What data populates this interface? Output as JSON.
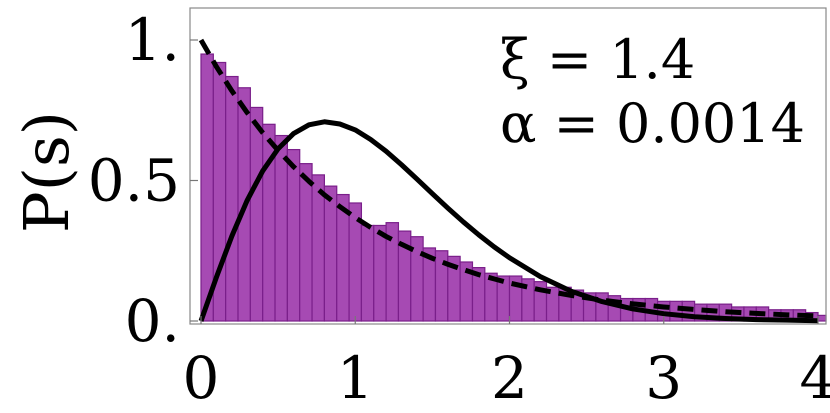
{
  "chart_data": {
    "type": "bar",
    "title": "",
    "xlabel": "",
    "ylabel": "P(s)",
    "xlim": [
      0,
      4.05
    ],
    "ylim": [
      0,
      1.02
    ],
    "xticks": [
      "0",
      "1",
      "2",
      "3",
      "4"
    ],
    "yticks": [
      "0.",
      "0.5",
      "1."
    ],
    "grid": false,
    "bar_color": "#a64ab3",
    "bar_edge_color": "#7a1f8a",
    "annotations": {
      "xi": "ξ = 1.4",
      "alpha": "α = 0.0014"
    },
    "histogram": {
      "bin_width": 0.08,
      "x": [
        0.04,
        0.12,
        0.2,
        0.28,
        0.36,
        0.44,
        0.52,
        0.6,
        0.68,
        0.76,
        0.84,
        0.92,
        1.0,
        1.08,
        1.16,
        1.24,
        1.32,
        1.4,
        1.48,
        1.56,
        1.64,
        1.72,
        1.8,
        1.88,
        1.96,
        2.04,
        2.12,
        2.2,
        2.28,
        2.36,
        2.44,
        2.52,
        2.6,
        2.68,
        2.76,
        2.84,
        2.92,
        3.0,
        3.08,
        3.16,
        3.24,
        3.32,
        3.4,
        3.48,
        3.56,
        3.64,
        3.72,
        3.8,
        3.88,
        3.96,
        4.04
      ],
      "values": [
        0.95,
        0.92,
        0.87,
        0.83,
        0.76,
        0.7,
        0.66,
        0.61,
        0.56,
        0.52,
        0.48,
        0.45,
        0.42,
        0.34,
        0.34,
        0.35,
        0.32,
        0.3,
        0.26,
        0.25,
        0.23,
        0.21,
        0.19,
        0.17,
        0.16,
        0.16,
        0.15,
        0.14,
        0.12,
        0.12,
        0.11,
        0.1,
        0.1,
        0.09,
        0.08,
        0.08,
        0.08,
        0.07,
        0.07,
        0.07,
        0.06,
        0.06,
        0.06,
        0.05,
        0.05,
        0.05,
        0.04,
        0.04,
        0.04,
        0.03,
        0.02
      ]
    },
    "series": [
      {
        "style": "dashed",
        "x": [
          0,
          0.1,
          0.2,
          0.3,
          0.4,
          0.5,
          0.6,
          0.7,
          0.8,
          0.9,
          1.0,
          1.1,
          1.2,
          1.3,
          1.4,
          1.5,
          1.6,
          1.7,
          1.8,
          1.9,
          2.0,
          2.2,
          2.4,
          2.6,
          2.8,
          3.0,
          3.2,
          3.4,
          3.6,
          3.8,
          4.0
        ],
        "values": [
          1.0,
          0.905,
          0.819,
          0.741,
          0.67,
          0.607,
          0.549,
          0.497,
          0.449,
          0.407,
          0.368,
          0.333,
          0.301,
          0.273,
          0.247,
          0.223,
          0.202,
          0.183,
          0.165,
          0.15,
          0.135,
          0.111,
          0.091,
          0.074,
          0.061,
          0.05,
          0.041,
          0.033,
          0.027,
          0.022,
          0.018
        ]
      },
      {
        "style": "solid",
        "x": [
          0,
          0.1,
          0.2,
          0.3,
          0.4,
          0.5,
          0.6,
          0.7,
          0.8,
          0.9,
          1.0,
          1.1,
          1.2,
          1.3,
          1.4,
          1.5,
          1.6,
          1.7,
          1.8,
          1.9,
          2.0,
          2.2,
          2.4,
          2.6,
          2.8,
          3.0,
          3.2,
          3.4,
          3.6,
          3.8,
          4.0
        ],
        "values": [
          0,
          0.156,
          0.302,
          0.43,
          0.534,
          0.613,
          0.667,
          0.698,
          0.709,
          0.701,
          0.68,
          0.646,
          0.604,
          0.556,
          0.505,
          0.453,
          0.402,
          0.353,
          0.307,
          0.264,
          0.225,
          0.158,
          0.106,
          0.069,
          0.043,
          0.026,
          0.015,
          0.009,
          0.005,
          0.003,
          0.001
        ]
      }
    ]
  }
}
